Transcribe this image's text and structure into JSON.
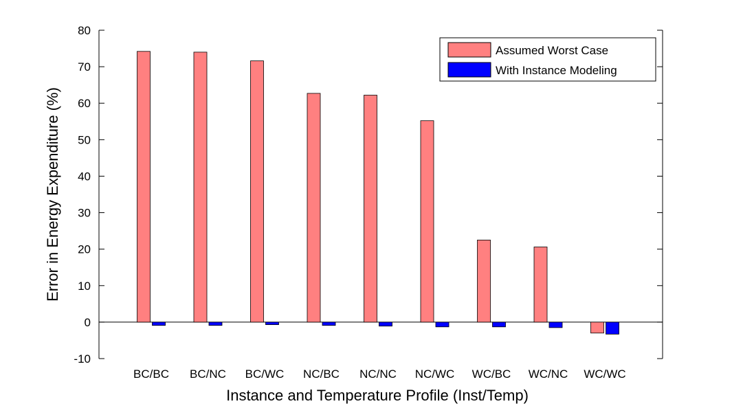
{
  "chart_data": {
    "type": "bar",
    "title": "",
    "xlabel": "Instance and Temperature Profile (Inst/Temp)",
    "ylabel": "Error in Energy Expenditure (%)",
    "ylim": [
      -10,
      80
    ],
    "yticks": [
      -10,
      0,
      10,
      20,
      30,
      40,
      50,
      60,
      70,
      80
    ],
    "grid": false,
    "legend_position": "top-right",
    "categories": [
      "BC/BC",
      "BC/NC",
      "BC/WC",
      "NC/BC",
      "NC/NC",
      "NC/WC",
      "WC/BC",
      "WC/NC",
      "WC/WC"
    ],
    "series": [
      {
        "name": "Assumed Worst Case",
        "color": "#ff8080",
        "values": [
          74.2,
          74.0,
          71.6,
          62.7,
          62.2,
          55.2,
          22.5,
          20.6,
          -3.0
        ]
      },
      {
        "name": "With Instance Modeling",
        "color": "#0000ff",
        "values": [
          -0.9,
          -0.9,
          -0.7,
          -0.9,
          -1.1,
          -1.3,
          -1.3,
          -1.5,
          -3.3
        ]
      }
    ]
  }
}
